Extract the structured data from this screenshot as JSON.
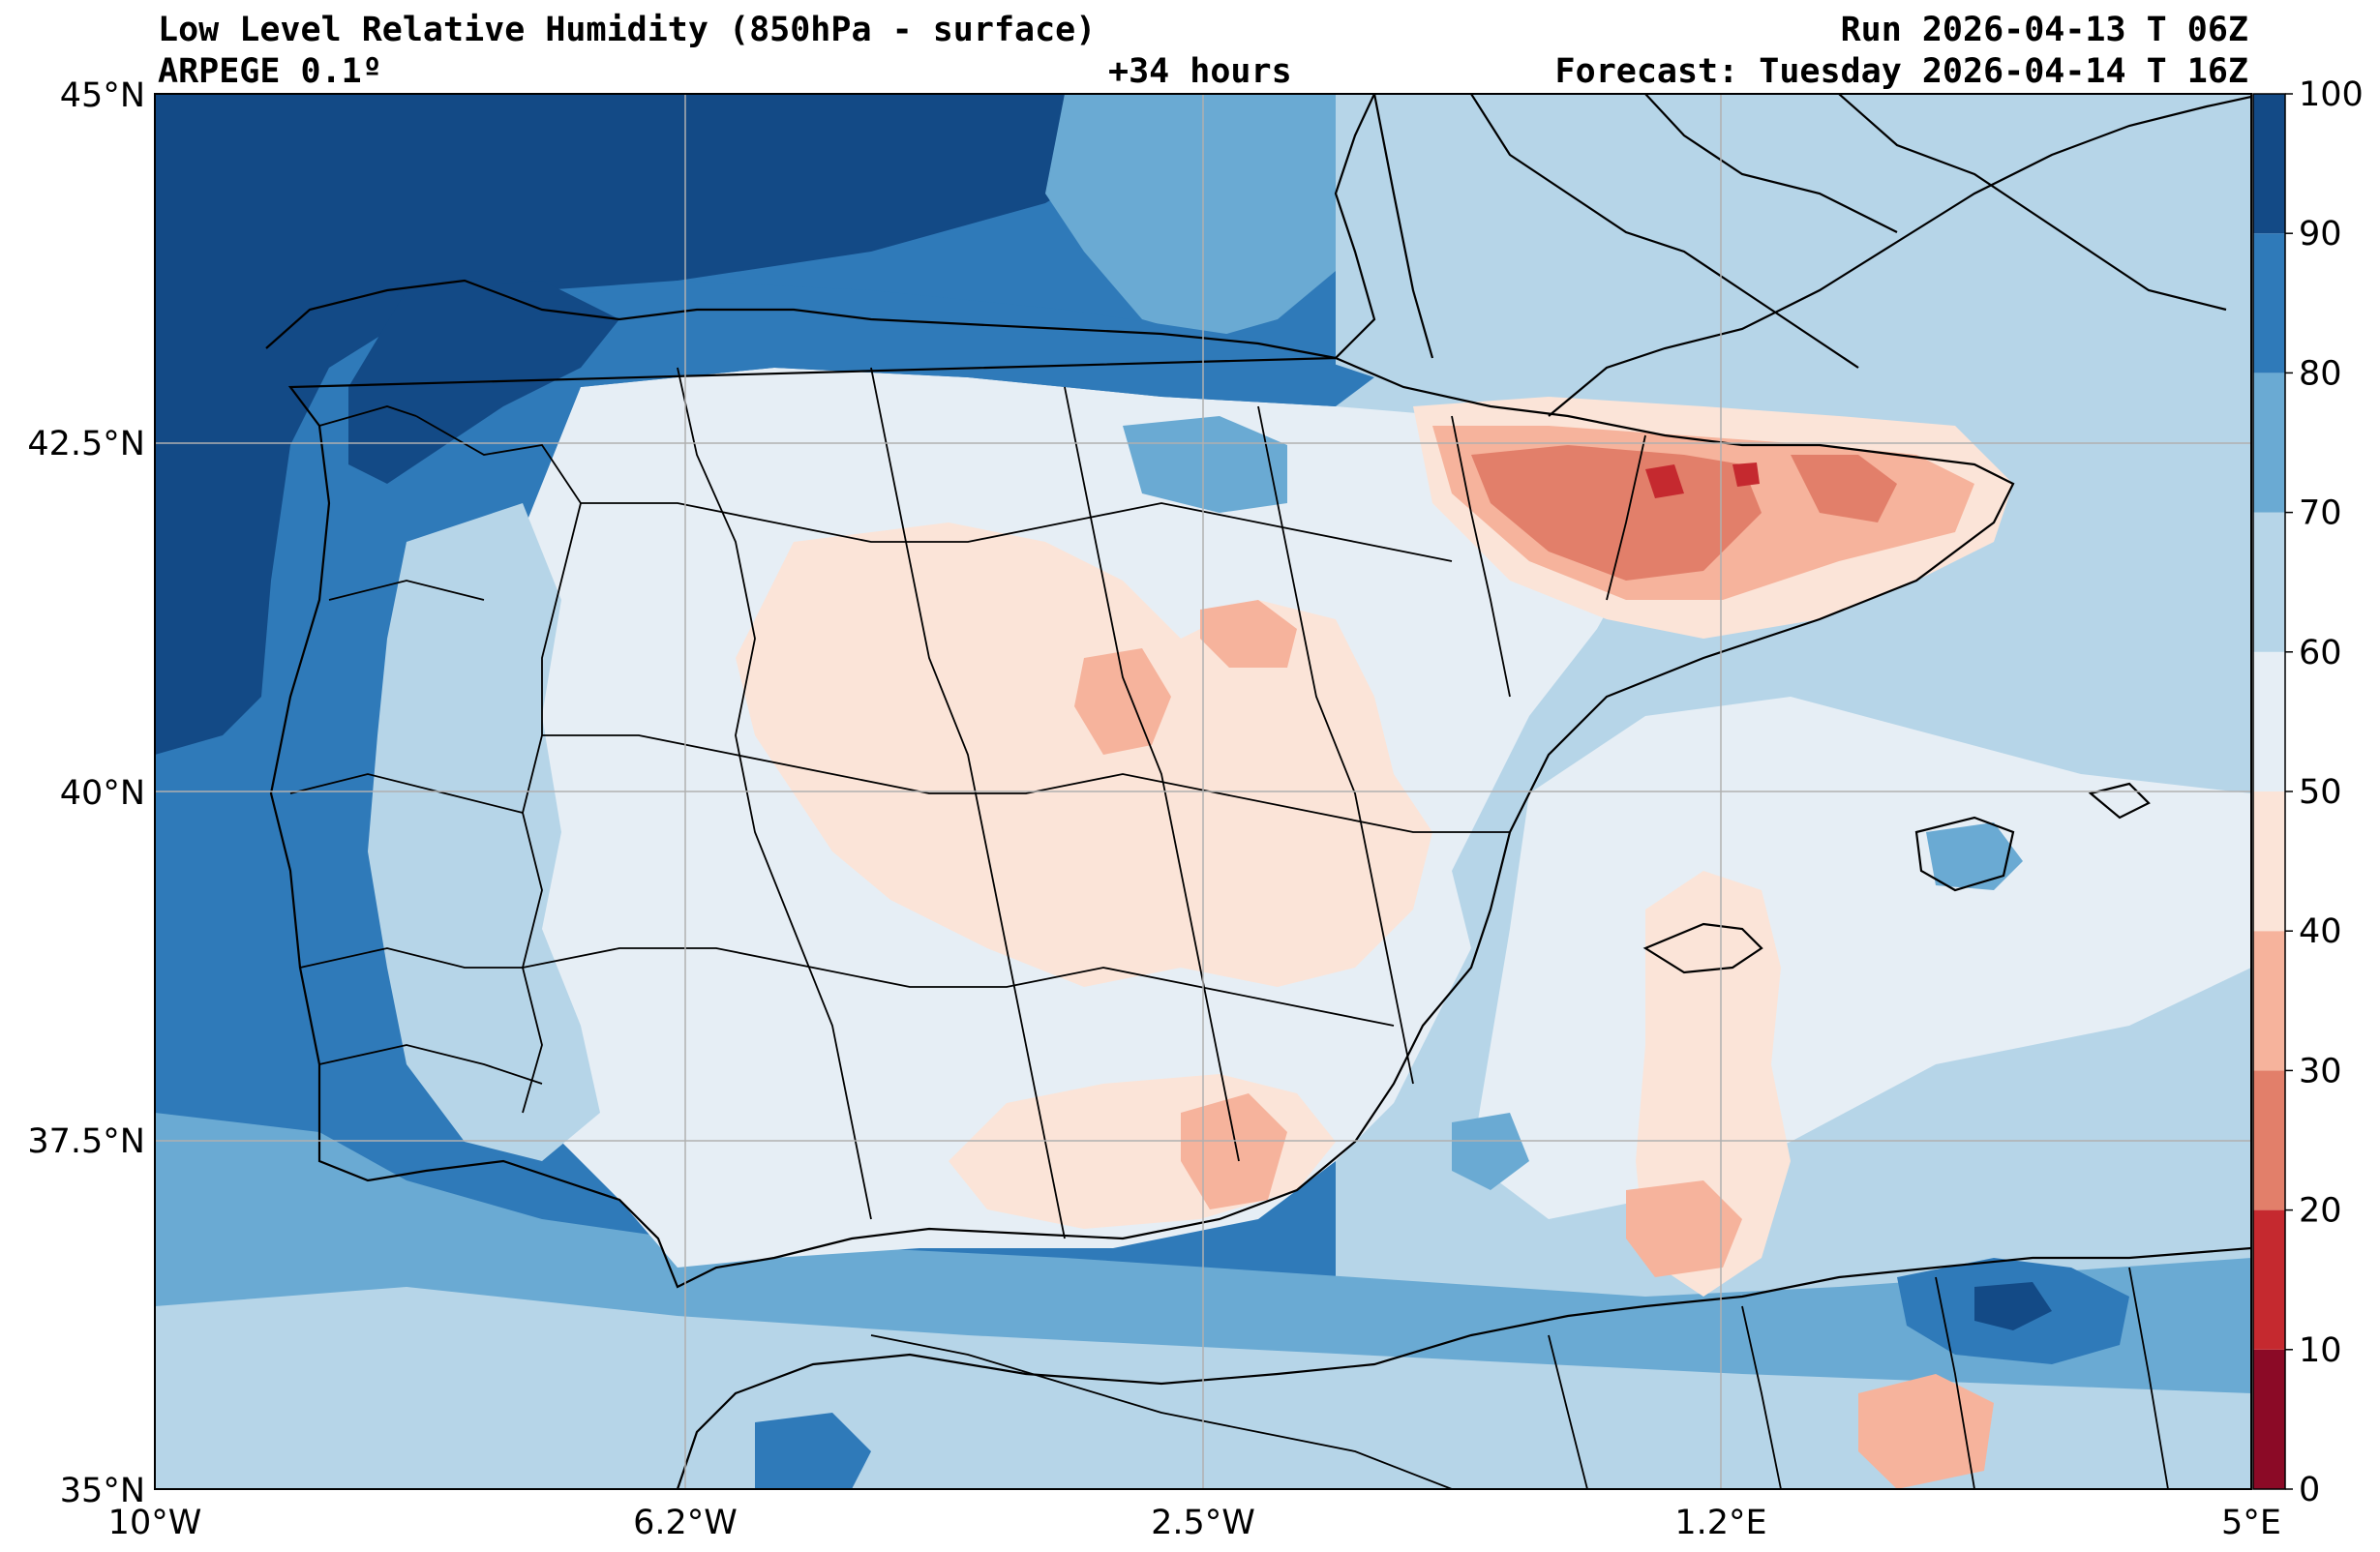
{
  "header": {
    "title": "Low Level Relative Humidity (850hPa - surface)",
    "model": "ARPEGE 0.1º",
    "lead": "+34 hours",
    "run": "Run 2026-04-13 T 06Z",
    "forecast": "Forecast: Tuesday 2026-04-14 T 16Z"
  },
  "axes": {
    "lat_labels": [
      "45°N",
      "42.5°N",
      "40°N",
      "37.5°N",
      "35°N"
    ],
    "lon_labels": [
      "10°W",
      "6.2°W",
      "2.5°W",
      "1.2°E",
      "5°E"
    ]
  },
  "colorbar": {
    "levels": [
      0,
      10,
      20,
      30,
      40,
      50,
      60,
      70,
      80,
      90,
      100
    ],
    "labels": [
      "0",
      "10",
      "20",
      "30",
      "40",
      "50",
      "60",
      "70",
      "80",
      "90",
      "100"
    ],
    "colors": [
      "#8b0a26",
      "#c5292f",
      "#e27f6a",
      "#f6b39c",
      "#fbe4d8",
      "#e6eef5",
      "#b6d5e8",
      "#6aaad3",
      "#2f7ab9",
      "#134a86"
    ]
  }
}
